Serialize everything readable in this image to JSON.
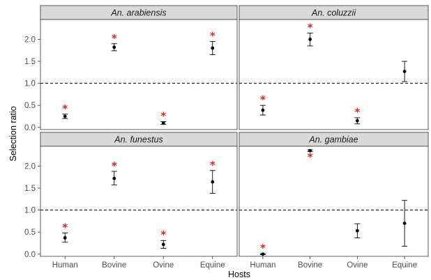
{
  "chart_data": {
    "type": "scatter",
    "subtype": "point-errorbar-facets",
    "xlabel": "Hosts",
    "ylabel": "Selection ratio",
    "categories": [
      "Human",
      "Bovine",
      "Ovine",
      "Equine"
    ],
    "ylim": [
      -0.05,
      2.45
    ],
    "yticks": [
      "0.0",
      "0.5",
      "1.0",
      "1.5",
      "2.0"
    ],
    "reference_line": 1.0,
    "grid": false,
    "colors": {
      "point": "#000000",
      "star": "#e0241b",
      "strip": "#d9d9d9",
      "panel_border": "#333333"
    },
    "panels": [
      {
        "title": "An. arabiensis",
        "points": [
          {
            "host": "Human",
            "value": 0.25,
            "low": 0.2,
            "high": 0.3,
            "significant": true
          },
          {
            "host": "Bovine",
            "value": 1.82,
            "low": 1.74,
            "high": 1.9,
            "significant": true
          },
          {
            "host": "Ovine",
            "value": 0.1,
            "low": 0.07,
            "high": 0.13,
            "significant": true
          },
          {
            "host": "Equine",
            "value": 1.8,
            "low": 1.65,
            "high": 1.95,
            "significant": true
          }
        ]
      },
      {
        "title": "An. coluzzii",
        "points": [
          {
            "host": "Human",
            "value": 0.39,
            "low": 0.28,
            "high": 0.5,
            "significant": true
          },
          {
            "host": "Bovine",
            "value": 2.0,
            "low": 1.85,
            "high": 2.14,
            "significant": true
          },
          {
            "host": "Ovine",
            "value": 0.15,
            "low": 0.08,
            "high": 0.22,
            "significant": true
          },
          {
            "host": "Equine",
            "value": 1.27,
            "low": 1.04,
            "high": 1.5,
            "significant": false
          }
        ]
      },
      {
        "title": "An. funestus",
        "points": [
          {
            "host": "Human",
            "value": 0.37,
            "low": 0.27,
            "high": 0.48,
            "significant": true
          },
          {
            "host": "Bovine",
            "value": 1.72,
            "low": 1.57,
            "high": 1.88,
            "significant": true
          },
          {
            "host": "Ovine",
            "value": 0.22,
            "low": 0.13,
            "high": 0.31,
            "significant": true
          },
          {
            "host": "Equine",
            "value": 1.64,
            "low": 1.38,
            "high": 1.9,
            "significant": true
          }
        ]
      },
      {
        "title": "An. gambiae",
        "points": [
          {
            "host": "Human",
            "value": 0.0,
            "low": -0.01,
            "high": 0.01,
            "significant": true,
            "star_below": false
          },
          {
            "host": "Bovine",
            "value": 2.35,
            "low": 2.33,
            "high": 2.37,
            "significant": true,
            "star_below": true
          },
          {
            "host": "Ovine",
            "value": 0.53,
            "low": 0.37,
            "high": 0.69,
            "significant": false
          },
          {
            "host": "Equine",
            "value": 0.7,
            "low": 0.18,
            "high": 1.22,
            "significant": false
          }
        ]
      }
    ]
  }
}
